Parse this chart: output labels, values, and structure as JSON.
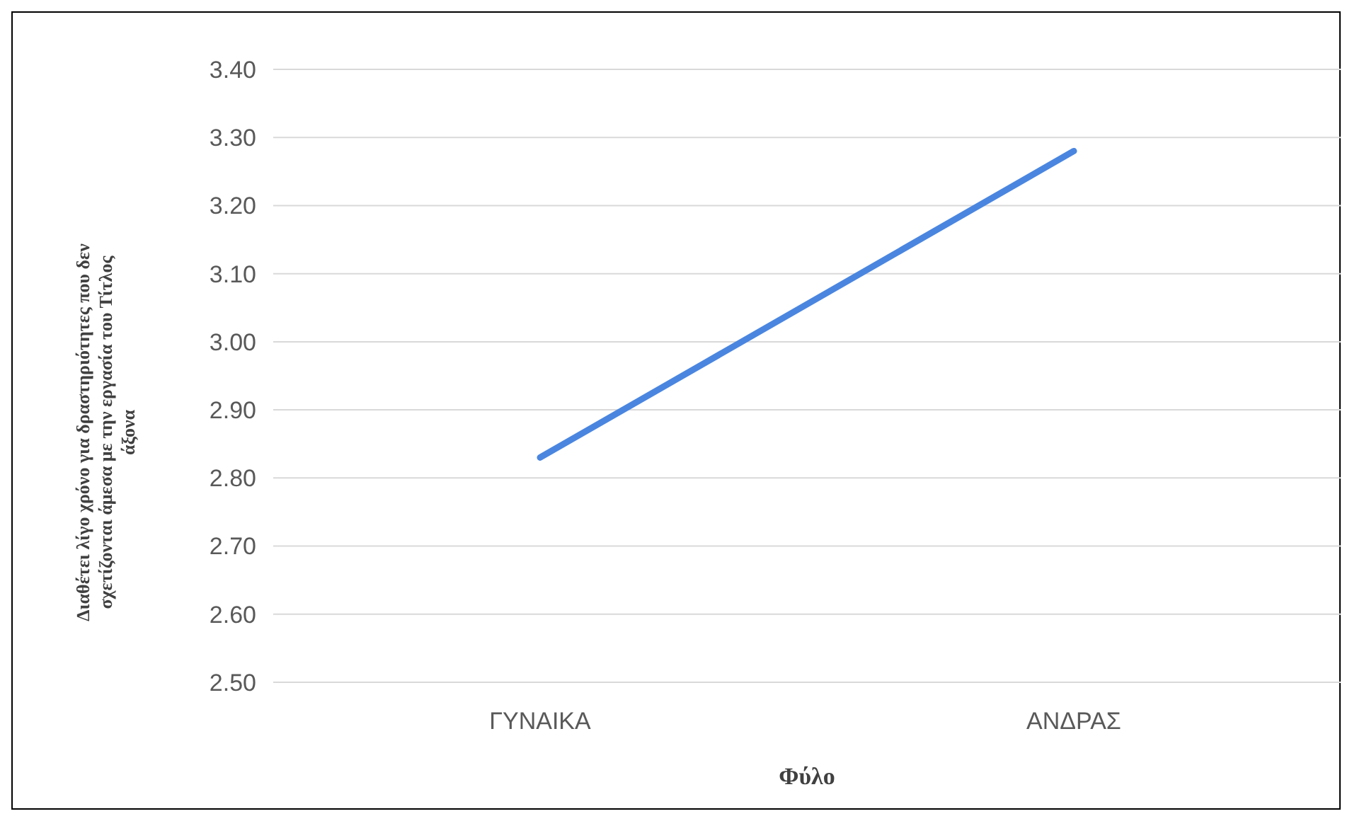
{
  "chart_data": {
    "type": "line",
    "xlabel": "Φύλο",
    "ylabel": "Διαθέτει λίγο χρόνο για δραστηριότητες που δεν σχετίζονται άμεσα με την εργασία του Τίτλος άξονα",
    "categories": [
      "ΓΥΝΑΙΚΑ",
      "ΑΝΔΡΑΣ"
    ],
    "series": [
      {
        "color": "#4a86e0",
        "values": [
          2.83,
          3.28
        ]
      }
    ],
    "ylim": [
      2.5,
      3.4
    ],
    "yticks": [
      {
        "value": 2.5,
        "label": "2.50"
      },
      {
        "value": 2.6,
        "label": "2.60"
      },
      {
        "value": 2.7,
        "label": "2.70"
      },
      {
        "value": 2.8,
        "label": "2.80"
      },
      {
        "value": 2.9,
        "label": "2.90"
      },
      {
        "value": 3.0,
        "label": "3.00"
      },
      {
        "value": 3.1,
        "label": "3.10"
      },
      {
        "value": 3.2,
        "label": "3.20"
      },
      {
        "value": 3.3,
        "label": "3.30"
      },
      {
        "value": 3.4,
        "label": "3.40"
      }
    ],
    "grid": "y",
    "marker": "none",
    "line_style": "solid"
  }
}
